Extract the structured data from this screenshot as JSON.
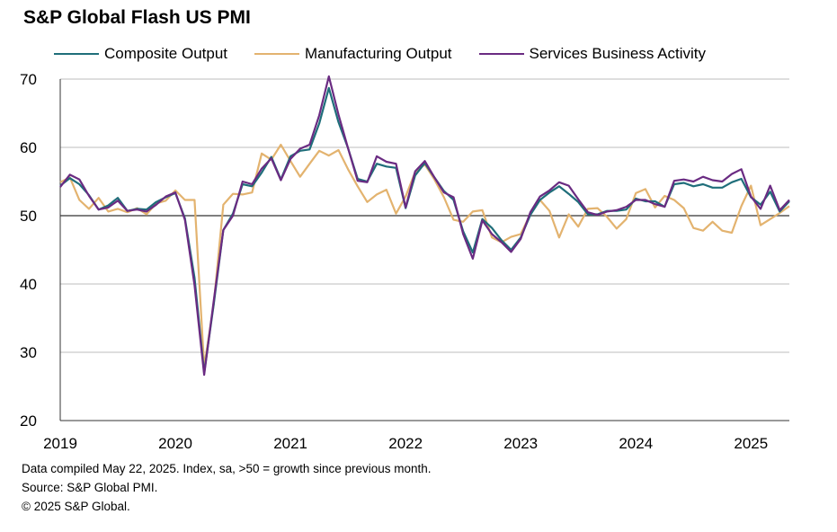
{
  "title": "S&P Global Flash US PMI",
  "footnotes": [
    "Data compiled May 22, 2025. Index,  sa, >50 = growth since previous month.",
    "Source: S&P Global PMI.",
    "© 2025 S&P Global."
  ],
  "chart_data": {
    "type": "line",
    "title": "S&P Global Flash US PMI",
    "xlabel": "",
    "ylabel": "",
    "ylim": [
      20,
      70
    ],
    "yticks": [
      20,
      30,
      40,
      50,
      60,
      70
    ],
    "xticks": [
      "2019",
      "2020",
      "2021",
      "2022",
      "2023",
      "2024",
      "2025"
    ],
    "grid": true,
    "reference_line": 50,
    "legend_position": "top",
    "x_start": "2019-01",
    "x_end": "2025-05",
    "series": [
      {
        "name": "Composite Output",
        "color": "#1f6e7a",
        "values": [
          54.4,
          55.5,
          54.6,
          53.0,
          50.9,
          51.5,
          52.6,
          50.7,
          51.0,
          50.9,
          52.0,
          52.7,
          53.3,
          49.6,
          40.9,
          27.0,
          37.0,
          47.9,
          50.3,
          54.6,
          54.3,
          56.3,
          58.6,
          55.3,
          58.7,
          59.5,
          59.7,
          63.5,
          68.7,
          63.7,
          59.9,
          55.4,
          55.0,
          57.6,
          57.2,
          57.0,
          51.1,
          55.9,
          57.7,
          55.6,
          53.6,
          52.3,
          47.7,
          44.6,
          49.5,
          48.2,
          46.4,
          45.0,
          46.8,
          50.1,
          52.3,
          53.4,
          54.3,
          53.2,
          52.0,
          50.2,
          50.2,
          50.7,
          50.7,
          50.9,
          52.5,
          52.1,
          52.1,
          51.3,
          54.6,
          54.8,
          54.3,
          54.6,
          54.1,
          54.1,
          54.9,
          55.4,
          52.7,
          51.6,
          53.5,
          50.6,
          52.1
        ]
      },
      {
        "name": "Manufacturing Output",
        "color": "#e3b36f",
        "values": [
          54.9,
          55.6,
          52.3,
          51.0,
          52.6,
          50.6,
          51.0,
          50.5,
          51.1,
          50.2,
          51.8,
          52.2,
          53.7,
          52.3,
          52.3,
          27.9,
          37.0,
          51.6,
          53.2,
          53.1,
          53.4,
          59.1,
          58.2,
          60.4,
          58.0,
          55.7,
          57.6,
          59.5,
          58.8,
          59.6,
          56.8,
          54.3,
          52.0,
          53.1,
          53.8,
          50.3,
          52.8,
          56.4,
          57.5,
          55.3,
          52.7,
          49.4,
          49.1,
          50.6,
          50.8,
          46.8,
          46.1,
          46.9,
          47.3,
          50.2,
          52.3,
          50.7,
          46.8,
          50.2,
          48.4,
          51.0,
          51.1,
          49.8,
          48.1,
          49.5,
          53.3,
          53.9,
          51.2,
          52.9,
          52.3,
          51.1,
          48.2,
          47.8,
          49.1,
          47.8,
          47.5,
          51.4,
          54.4,
          48.6,
          49.5,
          50.4,
          51.4
        ]
      },
      {
        "name": "Services Business Activity",
        "color": "#6a2b82",
        "values": [
          54.2,
          56.0,
          55.3,
          52.9,
          50.9,
          51.2,
          52.2,
          50.7,
          50.9,
          50.6,
          51.6,
          52.8,
          53.4,
          49.4,
          39.8,
          26.7,
          37.5,
          47.9,
          50.0,
          55.0,
          54.6,
          56.9,
          58.4,
          55.2,
          58.3,
          59.8,
          60.4,
          64.7,
          70.4,
          64.8,
          59.9,
          55.1,
          54.9,
          58.7,
          57.9,
          57.6,
          51.2,
          56.5,
          58.0,
          55.6,
          53.4,
          52.7,
          47.3,
          43.7,
          49.3,
          47.3,
          46.1,
          44.7,
          46.6,
          50.5,
          52.8,
          53.7,
          54.9,
          54.4,
          52.4,
          50.5,
          50.1,
          50.6,
          50.8,
          51.3,
          52.3,
          52.3,
          51.7,
          51.3,
          55.1,
          55.3,
          55.0,
          55.7,
          55.2,
          55.0,
          56.1,
          56.8,
          52.8,
          51.0,
          54.4,
          50.8,
          52.3
        ]
      }
    ]
  }
}
